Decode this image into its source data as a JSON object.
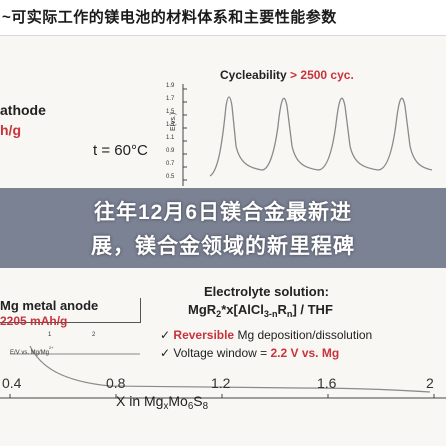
{
  "header": {
    "title": "~可实际工作的镁电池的材料体系和主要性能参数"
  },
  "figure": {
    "cycleability_label": "Cycleability",
    "cycleability_value": "> 2500 cyc.",
    "cathode_label": "athode",
    "cathode_unit": "h/g",
    "temperature_label": "t = 60°C",
    "y_axis_label": "E(vs.)",
    "y_ticks": [
      "1.9",
      "1.7",
      "1.5",
      "1.3",
      "1.1",
      "0.9",
      "0.7",
      "0.5"
    ],
    "electrolyte_title": "Electrolyte solution:",
    "electrolyte_formula_a": "MgR",
    "electrolyte_formula_b": "2",
    "electrolyte_formula_c": "*x[AlCl",
    "electrolyte_formula_d": "3-n",
    "electrolyte_formula_e": "R",
    "electrolyte_formula_f": "n",
    "electrolyte_formula_g": "] / THF",
    "check_1_red": "Reversible",
    "check_1_rest": "Mg deposition/dissolution",
    "check_2_text": "Voltage window = ",
    "check_2_value": "2.2 V vs. Mg",
    "anode_label": "Mg metal anode",
    "anode_value": "2205 mAh/g",
    "small_label_1": "E/V vs. Mg/Mg",
    "small_label_1_sup": "2+",
    "small_tick_1": "1",
    "small_tick_2": "2",
    "x_ticks": [
      "0.4",
      "0.8",
      "1.2",
      "1.6",
      "2"
    ],
    "x_axis_prefix": "X in Mg",
    "x_axis_sub": "x",
    "x_axis_mid": "Mo",
    "x_axis_sub2": "6",
    "x_axis_s": "S",
    "x_axis_sub3": "8",
    "check_mark": "✓"
  },
  "overlay": {
    "line_1": "往年12月6日镁合金最新进",
    "line_2": "展，镁合金领域的新里程碑"
  },
  "colors": {
    "accent_red": "#c8333c",
    "accent_blue": "#2b4aa0",
    "overlay": "#142346"
  }
}
